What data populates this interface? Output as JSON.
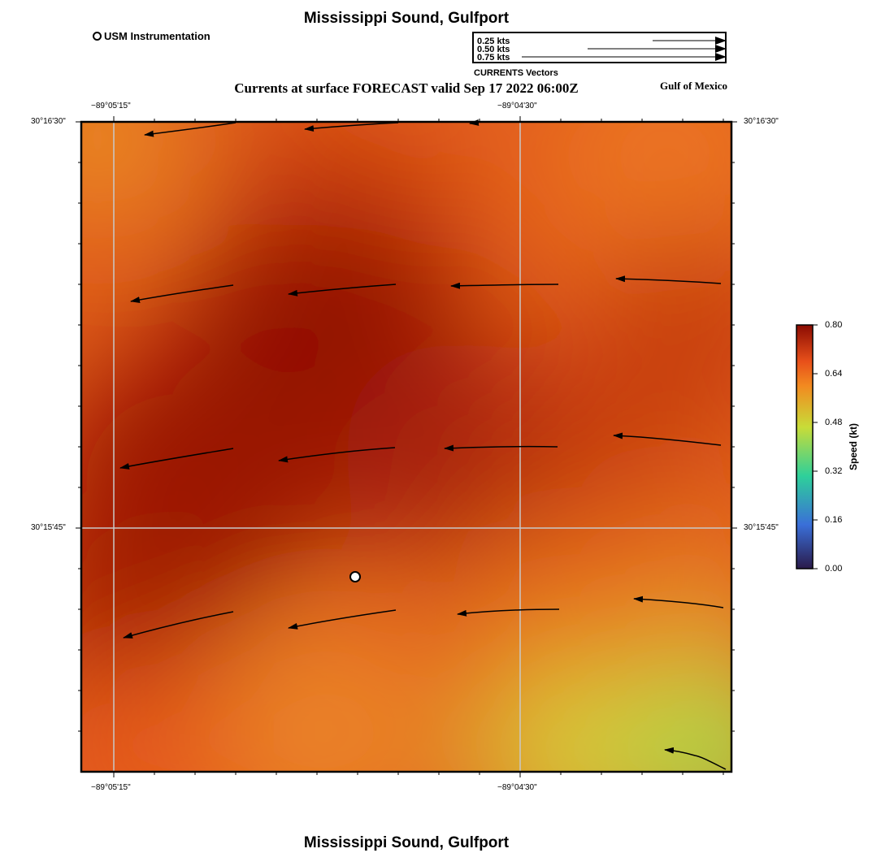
{
  "header": {
    "title": "Mississippi Sound, Gulfport",
    "subtitle": "Currents at surface FORECAST valid Sep 17 2022 06:00Z",
    "region": "Gulf of Mexico",
    "footer_title": "Mississippi Sound, Gulfport"
  },
  "station_legend": {
    "label": "USM Instrumentation"
  },
  "vector_legend": {
    "caption": "CURRENTS Vectors",
    "items": [
      {
        "label": "0.25 kts",
        "speed": 0.25
      },
      {
        "label": "0.50 kts",
        "speed": 0.5
      },
      {
        "label": "0.75 kts",
        "speed": 0.75
      }
    ]
  },
  "axes": {
    "lon_ticks": [
      "−89°05'15\"",
      "−89°04'30\""
    ],
    "lat_ticks": [
      "30°16'30\"",
      "30°15'45\""
    ]
  },
  "colorbar": {
    "label": "Speed (kt)",
    "ticks": [
      "0.00",
      "0.16",
      "0.32",
      "0.48",
      "0.64",
      "0.80"
    ],
    "colors": [
      "#2a1a4a",
      "#3a6fd8",
      "#2ed09a",
      "#c8dc38",
      "#f28a20",
      "#e8501a",
      "#8a0b02"
    ]
  },
  "chart_data": {
    "type": "vector-field-map",
    "title": "Mississippi Sound, Gulfport",
    "subtitle": "Currents at surface FORECAST valid Sep 17 2022 06:00Z",
    "variable": "Surface current speed",
    "units": "kt",
    "speed_range": [
      0.0,
      0.8
    ],
    "longitude_labels": [
      "−89°05'15\"",
      "−89°04'30\""
    ],
    "latitude_labels": [
      "30°16'30\"",
      "30°15'45\""
    ],
    "general_flow": "westward, roughly 0.6–0.8 kt across most of the domain",
    "max_speed_region": "center-left, ~0.8 kt",
    "min_speed_region": "bottom-right, ~0.45 kt",
    "station": "USM Instrumentation"
  }
}
